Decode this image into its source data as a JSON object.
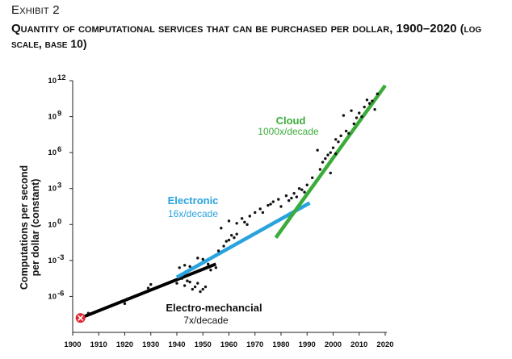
{
  "header": {
    "exhibit": "Exhibit 2",
    "title": "Quantity of computational services that can be purchased per dollar, 1900–2020",
    "title_paren": "(log scale, base 10)"
  },
  "chart_data": {
    "type": "scatter",
    "ylabel_line1": "Computations per second",
    "ylabel_line2": "per dollar (constant)",
    "xlim": [
      1900,
      2020
    ],
    "ylim_log10": [
      -9,
      12
    ],
    "y_scale": "log",
    "x_ticks": [
      "1900",
      "1910",
      "1920",
      "1930",
      "1940",
      "1950",
      "1960",
      "1970",
      "1980",
      "1990",
      "2000",
      "2010",
      "2020"
    ],
    "y_ticks": [
      {
        "exp": 12,
        "base": "10",
        "sup": "12"
      },
      {
        "exp": 9,
        "base": "10",
        "sup": "9"
      },
      {
        "exp": 6,
        "base": "10",
        "sup": "6"
      },
      {
        "exp": 3,
        "base": "10",
        "sup": "3"
      },
      {
        "exp": 0,
        "base": "10",
        "sup": "0"
      },
      {
        "exp": -3,
        "base": "10",
        "sup": "-3"
      },
      {
        "exp": -6,
        "base": "10",
        "sup": "-6"
      }
    ],
    "grid": false,
    "colors": {
      "electromechanical": "#000000",
      "electronic": "#29a3dd",
      "cloud": "#3aac3a",
      "points": "#111111",
      "start_marker": "#e0282e"
    },
    "start_marker": {
      "x": 1903,
      "y_log10": -7.8
    },
    "trends": [
      {
        "label": "Electro-mechancial",
        "rate": "7x/decade",
        "x": [
          1903,
          1955
        ],
        "y_log10": [
          -7.8,
          -3.3
        ]
      },
      {
        "label": "Electronic",
        "rate": "16x/decade",
        "x": [
          1940,
          1991
        ],
        "y_log10": [
          -4.4,
          1.8
        ]
      },
      {
        "label": "Cloud",
        "rate": "1000x/decade",
        "x": [
          1978,
          2020
        ],
        "y_log10": [
          -1.1,
          11.6
        ]
      }
    ],
    "points": [
      [
        1906,
        -7.4
      ],
      [
        1920,
        -6.6
      ],
      [
        1921,
        -6.2
      ],
      [
        1929,
        -5.3
      ],
      [
        1930,
        -5.0
      ],
      [
        1940,
        -4.9
      ],
      [
        1942,
        -4.5
      ],
      [
        1943,
        -5.1
      ],
      [
        1945,
        -4.8
      ],
      [
        1946,
        -5.4
      ],
      [
        1947,
        -5.2
      ],
      [
        1948,
        -4.9
      ],
      [
        1949,
        -5.6
      ],
      [
        1950,
        -5.4
      ],
      [
        1951,
        -5.2
      ],
      [
        1944,
        -4.7
      ],
      [
        1941,
        -3.6
      ],
      [
        1943,
        -3.4
      ],
      [
        1945,
        -3.5
      ],
      [
        1948,
        -2.8
      ],
      [
        1950,
        -2.9
      ],
      [
        1952,
        -3.3
      ],
      [
        1953,
        -3.8
      ],
      [
        1955,
        -3.6
      ],
      [
        1956,
        -2.2
      ],
      [
        1958,
        -1.8
      ],
      [
        1959,
        -1.4
      ],
      [
        1960,
        -1.3
      ],
      [
        1961,
        -0.9
      ],
      [
        1962,
        -1.1
      ],
      [
        1963,
        -0.8
      ],
      [
        1957,
        -0.3
      ],
      [
        1960,
        0.3
      ],
      [
        1963,
        0.1
      ],
      [
        1965,
        0.5
      ],
      [
        1966,
        0.2
      ],
      [
        1968,
        0.7
      ],
      [
        1970,
        1.0
      ],
      [
        1972,
        1.3
      ],
      [
        1973,
        1.0
      ],
      [
        1975,
        1.6
      ],
      [
        1977,
        1.9
      ],
      [
        1979,
        2.1
      ],
      [
        1980,
        1.5
      ],
      [
        1982,
        2.4
      ],
      [
        1983,
        2.0
      ],
      [
        1984,
        2.2
      ],
      [
        1985,
        2.6
      ],
      [
        1986,
        2.3
      ],
      [
        1987,
        3.0
      ],
      [
        1988,
        2.9
      ],
      [
        1990,
        3.3
      ],
      [
        1992,
        3.9
      ],
      [
        1995,
        4.6
      ],
      [
        1996,
        5.2
      ],
      [
        1997,
        5.5
      ],
      [
        1998,
        5.8
      ],
      [
        1999,
        6.0
      ],
      [
        2000,
        6.4
      ],
      [
        2001,
        7.1
      ],
      [
        2002,
        6.9
      ],
      [
        2003,
        7.4
      ],
      [
        2005,
        7.8
      ],
      [
        2006,
        7.6
      ],
      [
        2008,
        8.4
      ],
      [
        2009,
        8.9
      ],
      [
        2010,
        9.3
      ],
      [
        2011,
        9.0
      ],
      [
        2012,
        9.8
      ],
      [
        2013,
        10.4
      ],
      [
        2014,
        10.1
      ],
      [
        2015,
        10.3
      ],
      [
        2016,
        9.6
      ],
      [
        2017,
        10.9
      ],
      [
        2001,
        5.9
      ],
      [
        1999,
        4.3
      ],
      [
        1994,
        6.2
      ],
      [
        2007,
        9.5
      ],
      [
        2004,
        9.1
      ],
      [
        1989,
        2.7
      ],
      [
        1976,
        1.7
      ],
      [
        1967,
        0.0
      ]
    ]
  }
}
